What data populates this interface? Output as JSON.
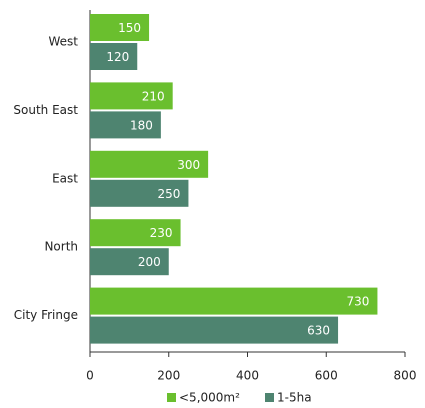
{
  "chart_data": {
    "type": "hbar",
    "categories": [
      "West",
      "South East",
      "East",
      "North",
      "City Fringe"
    ],
    "series": [
      {
        "name": "<5,000m²",
        "color": "#6abf2e",
        "values": [
          150,
          210,
          300,
          230,
          730
        ]
      },
      {
        "name": "1-5ha",
        "color": "#4e8470",
        "values": [
          120,
          180,
          250,
          200,
          630
        ]
      }
    ],
    "xlim": [
      0,
      800
    ],
    "xticks": [
      0,
      200,
      400,
      600,
      800
    ],
    "grid": false
  }
}
